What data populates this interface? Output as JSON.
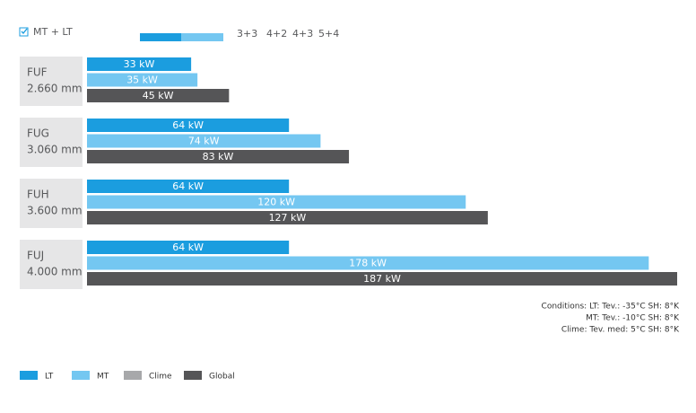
{
  "controls": {
    "checkbox_label": "MT + LT",
    "options": [
      "3+3",
      "4+2",
      "4+3",
      "5+4"
    ]
  },
  "chart_data": {
    "type": "bar",
    "orientation": "horizontal",
    "categories": [
      "FUF",
      "FUG",
      "FUH",
      "FUJ"
    ],
    "category_sublabels": [
      "2.660 mm",
      "3.060 mm",
      "3.600 mm",
      "4.000 mm"
    ],
    "series": [
      {
        "name": "LT",
        "color": "#1b9ddf",
        "values": [
          33,
          64,
          64,
          64
        ],
        "value_labels": [
          "33 kW",
          "64 kW",
          "64 kW",
          "64 kW"
        ]
      },
      {
        "name": "MT",
        "color": "#74c7f1",
        "values": [
          35,
          74,
          120,
          178
        ],
        "value_labels": [
          "35 kW",
          "74 kW",
          "120 kW",
          "178 kW"
        ]
      },
      {
        "name": "Clime",
        "color": "#a7a8aa",
        "values": [
          null,
          null,
          null,
          null
        ],
        "value_labels": [
          null,
          null,
          null,
          null
        ]
      },
      {
        "name": "Global",
        "color": "#555557",
        "values": [
          45,
          83,
          127,
          187
        ],
        "value_labels": [
          "45 kW",
          "83 kW",
          "127 kW",
          "187 kW"
        ]
      }
    ],
    "conditions": [
      "Conditions: LT: Tev.: -35°C  SH: 8°K",
      "MT: Tev.: -10°C  SH: 8°K",
      "Clime: Tev. med: 5°C  SH: 8°K"
    ]
  }
}
